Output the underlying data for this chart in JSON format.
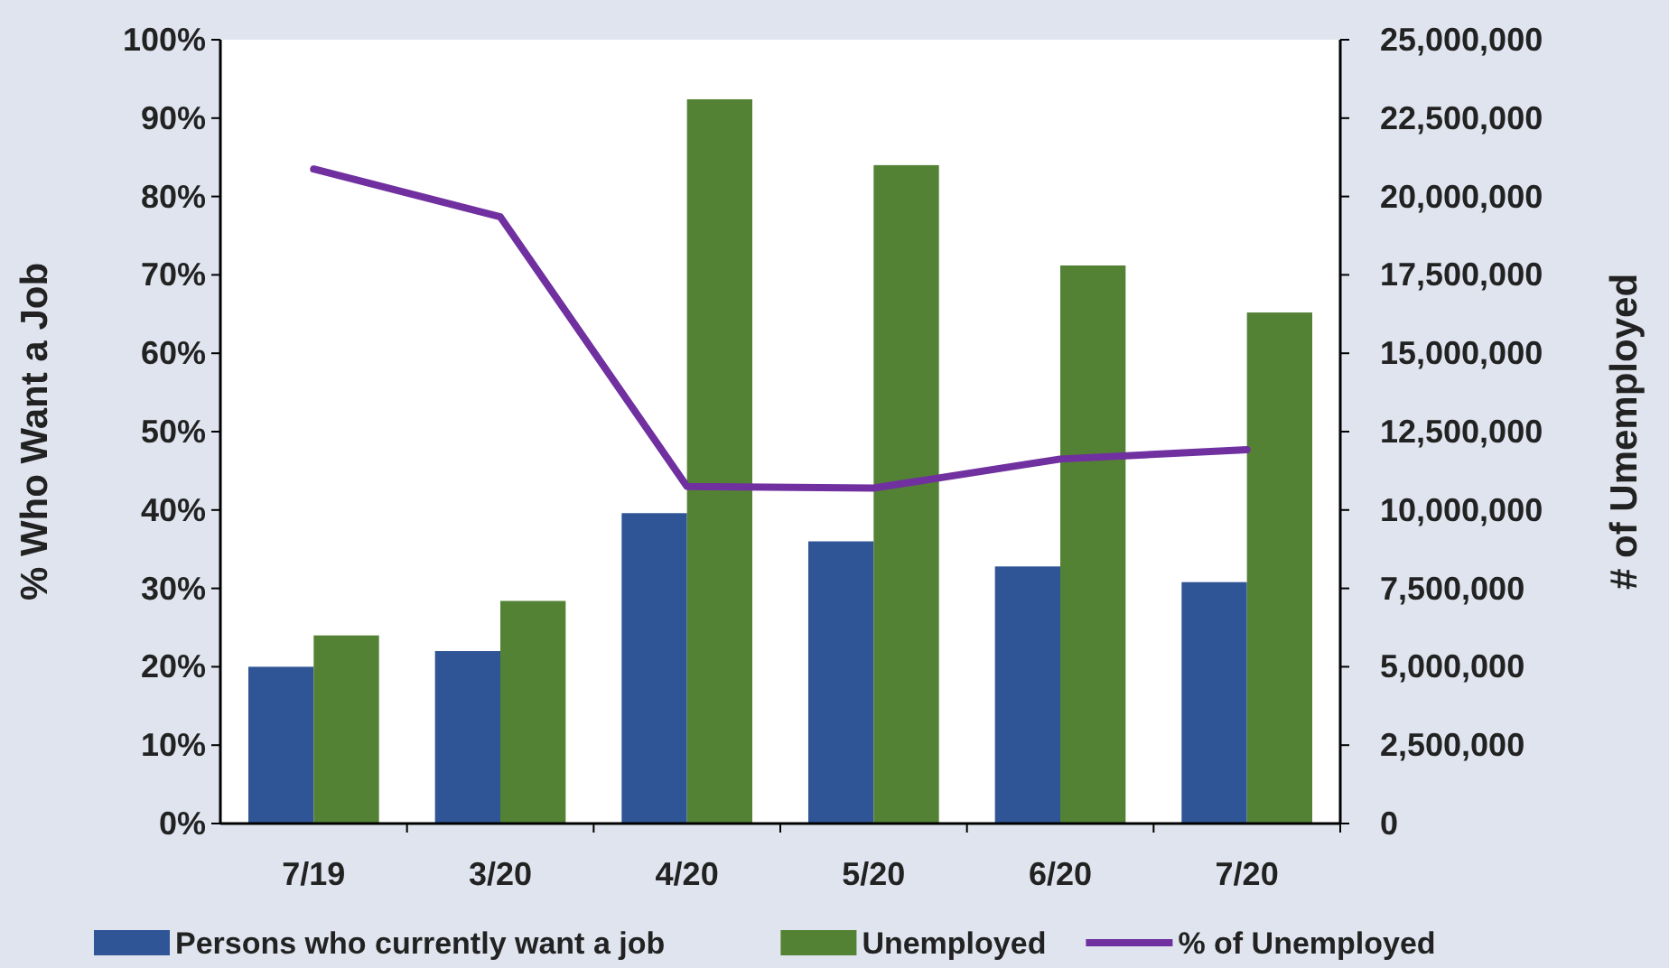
{
  "chart_data": {
    "type": "bar",
    "ylabel": "% Who Want a Job",
    "y2label": "# of Umemployed",
    "categories": [
      "7/19",
      "3/20",
      "4/20",
      "5/20",
      "6/20",
      "7/20"
    ],
    "series": [
      {
        "name": "Persons who currently want a job",
        "color": "#2f5597",
        "axis": "y2",
        "values": [
          5000000,
          5500000,
          9900000,
          9000000,
          8200000,
          7700000
        ]
      },
      {
        "name": "Unemployed",
        "color": "#548235",
        "axis": "y2",
        "values": [
          6000000,
          7100000,
          23100000,
          21000000,
          17800000,
          16300000
        ]
      },
      {
        "name": "% of Unemployed",
        "type": "line",
        "color": "#7030a0",
        "axis": "y",
        "values": [
          83.5,
          77.4,
          43,
          42.8,
          46.5,
          47.7
        ]
      }
    ],
    "ylim": [
      0,
      100
    ],
    "yticks": [
      {
        "value": 0,
        "label": "0%"
      },
      {
        "value": 10,
        "label": "10%"
      },
      {
        "value": 20,
        "label": "20%"
      },
      {
        "value": 30,
        "label": "30%"
      },
      {
        "value": 40,
        "label": "40%"
      },
      {
        "value": 50,
        "label": "50%"
      },
      {
        "value": 60,
        "label": "60%"
      },
      {
        "value": 70,
        "label": "70%"
      },
      {
        "value": 80,
        "label": "80%"
      },
      {
        "value": 90,
        "label": "90%"
      },
      {
        "value": 100,
        "label": "100%"
      }
    ],
    "y2lim": [
      0,
      25000000
    ],
    "y2ticks": [
      {
        "value": 0,
        "label": "0"
      },
      {
        "value": 2500000,
        "label": "2,500,000"
      },
      {
        "value": 5000000,
        "label": "5,000,000"
      },
      {
        "value": 7500000,
        "label": "7,500,000"
      },
      {
        "value": 10000000,
        "label": "10,000,000"
      },
      {
        "value": 12500000,
        "label": "12,500,000"
      },
      {
        "value": 15000000,
        "label": "15,000,000"
      },
      {
        "value": 17500000,
        "label": "17,500,000"
      },
      {
        "value": 20000000,
        "label": "20,000,000"
      },
      {
        "value": 22500000,
        "label": "22,500,000"
      },
      {
        "value": 25000000,
        "label": "25,000,000"
      }
    ],
    "legend": "bottom",
    "marker": "none",
    "grid": false
  }
}
